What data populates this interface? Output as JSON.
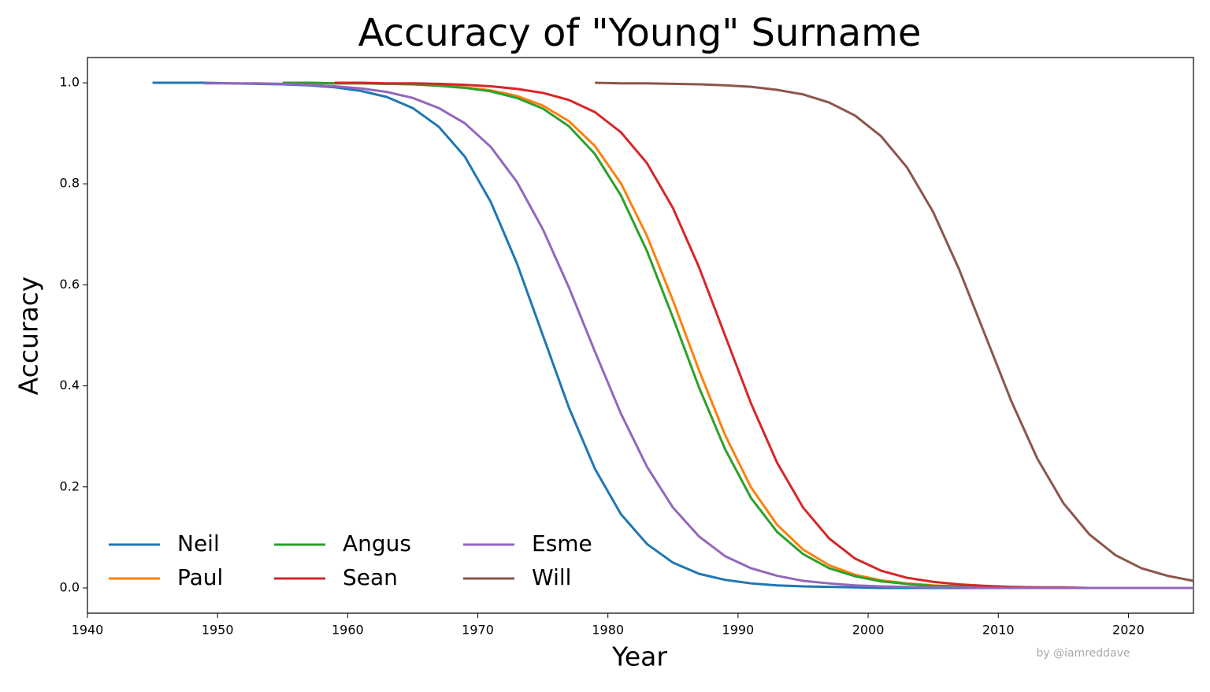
{
  "chart_data": {
    "type": "line",
    "title": "Accuracy of \"Young\" Surname",
    "x_label": "Year",
    "y_label": "Accuracy",
    "annotation": "by @iamreddave",
    "legend": "lower left",
    "legend_columns": 3,
    "xlim": [
      1940,
      2025
    ],
    "ylim": [
      -0.05,
      1.05
    ],
    "xticks": [
      1940,
      1950,
      1960,
      1970,
      1980,
      1990,
      2000,
      2010,
      2020
    ],
    "yticks": [
      {
        "value": 0,
        "label": "0.0"
      },
      0.2,
      0.4,
      0.6,
      0.8,
      {
        "value": 1,
        "label": "1.0"
      }
    ],
    "x": [
      1945,
      1947,
      1949,
      1951,
      1953,
      1955,
      1957,
      1959,
      1961,
      1963,
      1965,
      1967,
      1969,
      1971,
      1973,
      1975,
      1977,
      1979,
      1981,
      1983,
      1985,
      1987,
      1989,
      1991,
      1993,
      1995,
      1997,
      1999,
      2001,
      2003,
      2005,
      2007,
      2009,
      2011,
      2013,
      2015,
      2017,
      2019,
      2021,
      2023,
      2025
    ],
    "series": [
      {
        "name": "Neil",
        "color": "#1f77b4",
        "values": [
          1.0,
          1.0,
          1.0,
          0.999,
          0.998,
          0.997,
          0.995,
          0.991,
          0.984,
          0.972,
          0.95,
          0.913,
          0.854,
          0.764,
          0.643,
          0.5,
          0.357,
          0.236,
          0.146,
          0.087,
          0.05,
          0.028,
          0.016,
          0.009,
          0.005,
          0.003,
          0.002,
          0.001,
          0,
          0,
          0,
          0,
          0,
          0,
          0,
          0,
          0,
          0,
          0,
          0,
          0
        ]
      },
      {
        "name": "Paul",
        "color": "#ff7f0e",
        "values": [
          null,
          null,
          null,
          null,
          null,
          1.0,
          1.0,
          0.999,
          0.999,
          0.998,
          0.997,
          0.995,
          0.991,
          0.985,
          0.974,
          0.955,
          0.924,
          0.875,
          0.801,
          0.697,
          0.569,
          0.431,
          0.303,
          0.199,
          0.125,
          0.076,
          0.045,
          0.026,
          0.015,
          0.009,
          0.005,
          0.003,
          0.002,
          0.001,
          0.001,
          0,
          0,
          0,
          0,
          0,
          0
        ]
      },
      {
        "name": "Angus",
        "color": "#2ca02c",
        "values": [
          null,
          null,
          null,
          null,
          null,
          1.0,
          1.0,
          0.999,
          0.999,
          0.998,
          0.997,
          0.994,
          0.99,
          0.983,
          0.97,
          0.949,
          0.914,
          0.859,
          0.777,
          0.667,
          0.535,
          0.397,
          0.275,
          0.178,
          0.111,
          0.067,
          0.039,
          0.023,
          0.013,
          0.008,
          0.004,
          0.003,
          0.001,
          0.001,
          0,
          0,
          0,
          0,
          0,
          0,
          0
        ]
      },
      {
        "name": "Sean",
        "color": "#d62728",
        "values": [
          null,
          null,
          null,
          null,
          null,
          null,
          null,
          1.0,
          1.0,
          0.999,
          0.999,
          0.998,
          0.996,
          0.993,
          0.988,
          0.98,
          0.966,
          0.942,
          0.902,
          0.841,
          0.752,
          0.635,
          0.5,
          0.365,
          0.248,
          0.159,
          0.098,
          0.058,
          0.034,
          0.02,
          0.012,
          0.007,
          0.004,
          0.002,
          0.001,
          0.001,
          0,
          0,
          0,
          0,
          0
        ]
      },
      {
        "name": "Esme",
        "color": "#9467bd",
        "values": [
          null,
          null,
          0.999,
          0.999,
          0.999,
          0.998,
          0.996,
          0.993,
          0.989,
          0.982,
          0.97,
          0.95,
          0.92,
          0.873,
          0.804,
          0.71,
          0.595,
          0.468,
          0.345,
          0.24,
          0.159,
          0.102,
          0.063,
          0.039,
          0.024,
          0.014,
          0.009,
          0.005,
          0.003,
          0.002,
          0.001,
          0.001,
          0,
          0,
          0,
          0,
          0,
          0,
          0,
          0,
          0
        ]
      },
      {
        "name": "Will",
        "color": "#8c564b",
        "values": [
          null,
          null,
          null,
          null,
          null,
          null,
          null,
          null,
          null,
          null,
          null,
          null,
          null,
          null,
          null,
          null,
          null,
          1.0,
          0.999,
          0.999,
          0.998,
          0.997,
          0.995,
          0.992,
          0.986,
          0.977,
          0.961,
          0.935,
          0.894,
          0.832,
          0.744,
          0.63,
          0.5,
          0.37,
          0.256,
          0.168,
          0.106,
          0.065,
          0.039,
          0.024,
          0.014
        ]
      }
    ]
  }
}
